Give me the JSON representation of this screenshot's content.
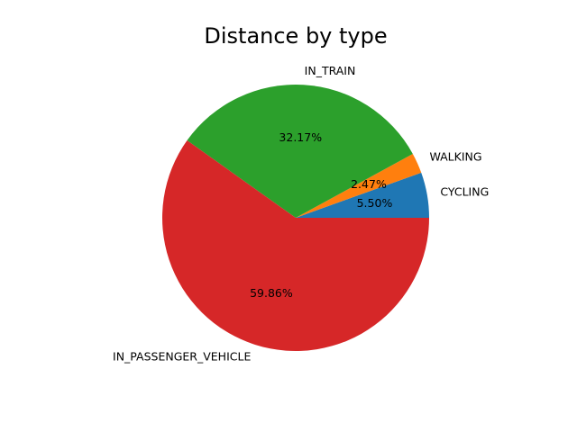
{
  "chart_data": {
    "type": "pie",
    "title": "Distance by type",
    "categories": [
      "CYCLING",
      "WALKING",
      "IN_TRAIN",
      "IN_PASSENGER_VEHICLE"
    ],
    "values": [
      5.5,
      2.47,
      32.17,
      59.86
    ],
    "value_labels": [
      "5.50%",
      "2.47%",
      "32.17%",
      "59.86%"
    ],
    "colors": [
      "#1f77b4",
      "#ff7f0e",
      "#2ca02c",
      "#d62728"
    ],
    "start_angle_deg": 0,
    "direction": "counterclockwise",
    "legend": "none"
  }
}
